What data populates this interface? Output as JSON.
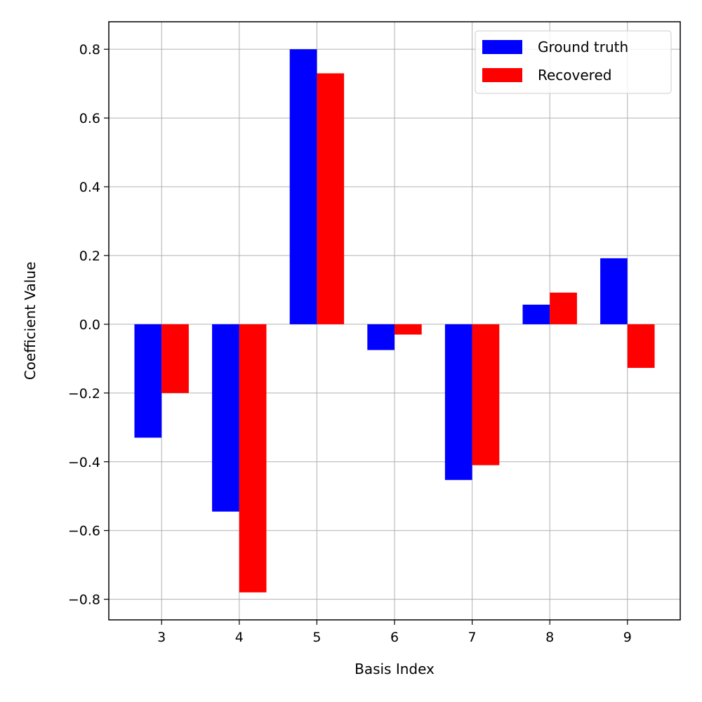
{
  "chart_data": {
    "type": "bar",
    "categories": [
      "3",
      "4",
      "5",
      "6",
      "7",
      "8",
      "9"
    ],
    "series": [
      {
        "name": "Ground truth",
        "color": "#0000ff",
        "values": [
          -0.33,
          -0.545,
          0.8,
          -0.075,
          -0.453,
          0.057,
          0.192
        ]
      },
      {
        "name": "Recovered",
        "color": "#ff0000",
        "values": [
          -0.2,
          -0.78,
          0.73,
          -0.03,
          -0.41,
          0.092,
          -0.127
        ]
      }
    ],
    "title": "",
    "xlabel": "Basis Index",
    "ylabel": "Coefficient Value",
    "ylim": [
      -0.86,
      0.88
    ],
    "xlim": [
      2.32,
      9.68
    ],
    "yticks": [
      -0.8,
      -0.6,
      -0.4,
      -0.2,
      0.0,
      0.2,
      0.4,
      0.6,
      0.8
    ],
    "ytick_labels": [
      "−0.8",
      "−0.6",
      "−0.4",
      "−0.2",
      "0.0",
      "0.2",
      "0.4",
      "0.6",
      "0.8"
    ],
    "grid": true,
    "legend_position": "top-right"
  }
}
